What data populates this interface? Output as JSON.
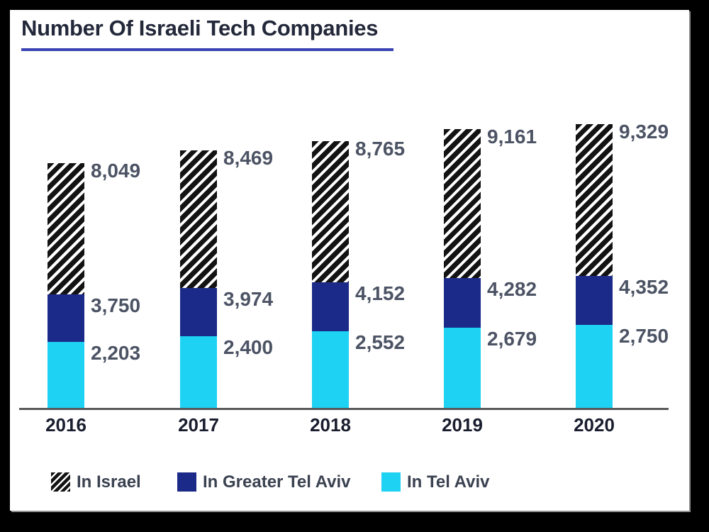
{
  "window": {
    "frame_color": "#000000",
    "card_background": "#ffffff"
  },
  "chart_data": {
    "type": "bar",
    "stacked": true,
    "title": "Number Of Israeli Tech Companies",
    "categories": [
      "2016",
      "2017",
      "2018",
      "2019",
      "2020"
    ],
    "series": [
      {
        "name": "In Israel",
        "style": "hatched",
        "values": [
          8049,
          8469,
          8765,
          9161,
          9329
        ]
      },
      {
        "name": "In Greater Tel Aviv",
        "style": "navy",
        "values": [
          3750,
          3974,
          4152,
          4282,
          4352
        ]
      },
      {
        "name": "In Tel Aviv",
        "style": "cyan",
        "values": [
          2203,
          2400,
          2552,
          2679,
          2750
        ]
      }
    ],
    "values_are_cumulative_totals": true,
    "data_labels": [
      [
        "8,049",
        "8,469",
        "8,765",
        "9,161",
        "9,329"
      ],
      [
        "3,750",
        "3,974",
        "4,152",
        "4,282",
        "4,352"
      ],
      [
        "2,203",
        "2,400",
        "2,552",
        "2,679",
        "2,750"
      ]
    ],
    "legend": [
      {
        "label": "In Israel",
        "swatch": "hatched"
      },
      {
        "label": "In Greater Tel Aviv",
        "swatch": "navy"
      },
      {
        "label": "In Tel Aviv",
        "swatch": "cyan"
      }
    ],
    "legend_position": "bottom",
    "grid": false,
    "y_axis_visible": false,
    "ylim": [
      0,
      9329
    ],
    "colors": {
      "navy": "#1b2a88",
      "cyan": "#1dd2f2",
      "hatch_dark": "#131313",
      "title_underline": "#3a43b2",
      "axis_line": "#58595b"
    }
  }
}
